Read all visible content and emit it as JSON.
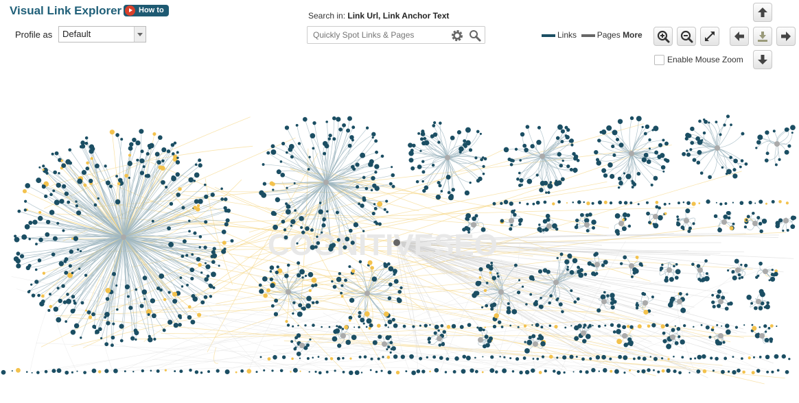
{
  "app": {
    "title": "Visual Link Explorer",
    "howto_label": "How to"
  },
  "profile": {
    "label": "Profile as",
    "selected": "Default"
  },
  "search": {
    "search_in_label": "Search in:",
    "search_in_fields": "Link Url, Link Anchor Text",
    "placeholder": "Quickly Spot Links & Pages"
  },
  "legend": {
    "links_label": "Links",
    "pages_label": "Pages",
    "more_label": "More",
    "links_color": "#1b4e63",
    "pages_color": "#666666"
  },
  "controls": {
    "mouse_zoom_label": "Enable Mouse Zoom",
    "mouse_zoom_checked": false
  },
  "graph": {
    "watermark": "COGNITIVESEO",
    "link_node_color": "#1b4e63",
    "page_node_color": "#f3c24d",
    "edge_color_links": "#9fb7c0",
    "edge_color_pages": "#f6d98c",
    "edge_color_grey": "#cfcfcf"
  }
}
